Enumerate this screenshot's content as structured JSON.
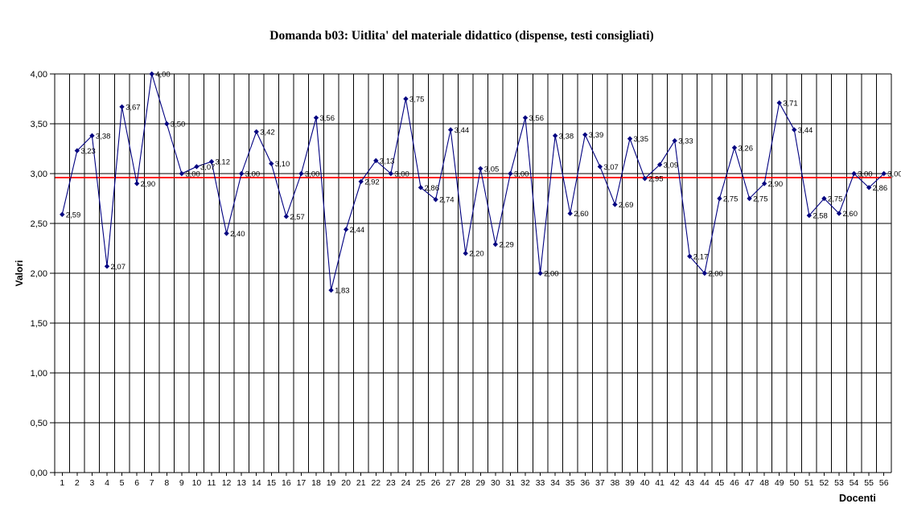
{
  "title": "Domanda b03: Uitlita' del materiale didattico (dispense, testi consigliati)",
  "chart_data": {
    "type": "line",
    "title": "Domanda b03: Uitlita' del materiale didattico (dispense, testi consigliati)",
    "xlabel": "Docenti",
    "ylabel": "Valori",
    "ylim": [
      0,
      4
    ],
    "y_tick_step": 0.5,
    "y_tick_labels": [
      "0,00",
      "0,50",
      "1,00",
      "1,50",
      "2,00",
      "2,50",
      "3,00",
      "3,50",
      "4,00"
    ],
    "grid": true,
    "legend": "none",
    "categories": [
      1,
      2,
      3,
      4,
      5,
      6,
      7,
      8,
      9,
      10,
      11,
      12,
      13,
      14,
      15,
      16,
      17,
      18,
      19,
      20,
      21,
      22,
      23,
      24,
      25,
      26,
      27,
      28,
      29,
      30,
      31,
      32,
      33,
      34,
      35,
      36,
      37,
      38,
      39,
      40,
      41,
      42,
      43,
      44,
      45,
      46,
      47,
      48,
      49,
      50,
      51,
      52,
      53,
      54,
      55,
      56
    ],
    "values": [
      2.59,
      3.23,
      3.38,
      2.07,
      3.67,
      2.9,
      4.0,
      3.5,
      3.0,
      3.07,
      3.12,
      2.4,
      3.0,
      3.42,
      3.1,
      2.57,
      3.0,
      3.56,
      1.83,
      2.44,
      2.92,
      3.13,
      3.0,
      3.75,
      2.86,
      2.74,
      3.44,
      2.2,
      3.05,
      2.29,
      3.0,
      3.56,
      2.0,
      3.38,
      2.6,
      3.39,
      3.07,
      2.69,
      3.35,
      2.95,
      3.09,
      3.33,
      2.17,
      2.0,
      2.75,
      3.26,
      2.75,
      2.9,
      3.71,
      3.44,
      2.58,
      2.75,
      2.6,
      3.0,
      2.86,
      3.0
    ],
    "series_color": "#000080",
    "mean_line": {
      "value": 2.96,
      "color": "#ff0000"
    },
    "grid_color": "#000000",
    "background_color": "#ffffff"
  }
}
